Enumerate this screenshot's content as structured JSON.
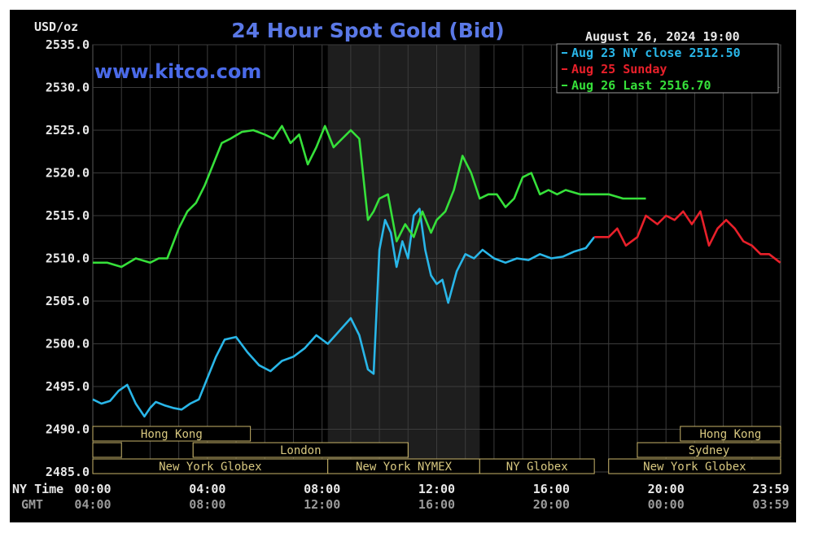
{
  "chart_data": {
    "type": "line",
    "title": "24 Hour Spot Gold (Bid)",
    "site": "www.kitco.com",
    "timestamp": "August 26, 2024 19:00",
    "y_unit": "USD/oz",
    "ylim": [
      2485.0,
      2535.0
    ],
    "yticks": [
      "2535.0",
      "2530.0",
      "2525.0",
      "2520.0",
      "2515.0",
      "2510.0",
      "2505.0",
      "2500.0",
      "2495.0",
      "2490.0",
      "2485.0"
    ],
    "x_row_label": "NY Time",
    "x_row2_label": "GMT",
    "xticks_ny": [
      "00:00",
      "04:00",
      "08:00",
      "12:00",
      "16:00",
      "20:00",
      "23:59"
    ],
    "xticks_gmt": [
      "04:00",
      "08:00",
      "12:00",
      "16:00",
      "20:00",
      "00:00",
      "03:59"
    ],
    "xlim_hours": [
      0,
      24
    ],
    "grid": true,
    "legend_position": "top-right",
    "legend": [
      {
        "label": "Aug 23 NY close 2512.50",
        "color": "#29b6e8"
      },
      {
        "label": "Aug 25 Sunday",
        "color": "#e8202a"
      },
      {
        "label": "Aug 26 Last 2516.70",
        "color": "#36e03a"
      }
    ],
    "series": [
      {
        "name": "Aug 23",
        "color": "#29b6e8",
        "x": [
          0,
          0.3,
          0.6,
          0.9,
          1.2,
          1.5,
          1.8,
          2.0,
          2.2,
          2.5,
          2.8,
          3.1,
          3.4,
          3.7,
          4.0,
          4.3,
          4.6,
          5.0,
          5.4,
          5.8,
          6.2,
          6.6,
          7.0,
          7.4,
          7.8,
          8.2,
          8.6,
          9.0,
          9.3,
          9.6,
          9.8,
          10.0,
          10.2,
          10.4,
          10.6,
          10.8,
          11.0,
          11.2,
          11.4,
          11.6,
          11.8,
          12.0,
          12.2,
          12.4,
          12.7,
          13.0,
          13.3,
          13.6,
          14.0,
          14.4,
          14.8,
          15.2,
          15.6,
          16.0,
          16.4,
          16.8,
          17.2,
          17.5
        ],
        "y": [
          2493.5,
          2493.0,
          2493.3,
          2494.5,
          2495.2,
          2493.0,
          2491.5,
          2492.5,
          2493.2,
          2492.8,
          2492.5,
          2492.3,
          2493.0,
          2493.5,
          2496.0,
          2498.5,
          2500.5,
          2500.8,
          2499.0,
          2497.5,
          2496.8,
          2498.0,
          2498.5,
          2499.5,
          2501.0,
          2500.0,
          2501.5,
          2503.0,
          2501.0,
          2497.0,
          2496.5,
          2511.0,
          2514.5,
          2513.0,
          2509.0,
          2512.0,
          2510.0,
          2515.0,
          2515.8,
          2511.0,
          2508.0,
          2507.0,
          2507.5,
          2504.8,
          2508.5,
          2510.5,
          2510.0,
          2511.0,
          2510.0,
          2509.5,
          2510.0,
          2509.8,
          2510.5,
          2510.0,
          2510.2,
          2510.8,
          2511.2,
          2512.5
        ]
      },
      {
        "name": "Aug 25",
        "color": "#e8202a",
        "x": [
          17.5,
          18.0,
          18.3,
          18.6,
          19.0,
          19.3,
          19.7,
          20.0,
          20.3,
          20.6,
          20.9,
          21.2,
          21.5,
          21.8,
          22.1,
          22.4,
          22.7,
          23.0,
          23.3,
          23.6,
          23.99
        ],
        "y": [
          2512.5,
          2512.5,
          2513.5,
          2511.5,
          2512.5,
          2515.0,
          2514.0,
          2515.0,
          2514.5,
          2515.5,
          2514.0,
          2515.5,
          2511.5,
          2513.5,
          2514.5,
          2513.5,
          2512.0,
          2511.5,
          2510.5,
          2510.5,
          2509.5
        ]
      },
      {
        "name": "Aug 26",
        "color": "#36e03a",
        "x": [
          0,
          0.5,
          1.0,
          1.5,
          2.0,
          2.3,
          2.6,
          3.0,
          3.3,
          3.6,
          3.9,
          4.2,
          4.5,
          4.8,
          5.2,
          5.6,
          6.0,
          6.3,
          6.6,
          6.9,
          7.2,
          7.5,
          7.8,
          8.1,
          8.4,
          8.7,
          9.0,
          9.3,
          9.6,
          9.8,
          10.0,
          10.3,
          10.6,
          10.9,
          11.2,
          11.5,
          11.8,
          12.0,
          12.3,
          12.6,
          12.9,
          13.2,
          13.5,
          13.8,
          14.1,
          14.4,
          14.7,
          15.0,
          15.3,
          15.6,
          15.9,
          16.2,
          16.5,
          17.0,
          17.5,
          18.0,
          18.5,
          19.0,
          19.3
        ],
        "y": [
          2509.5,
          2509.5,
          2509.0,
          2510.0,
          2509.5,
          2510.0,
          2510.0,
          2513.5,
          2515.5,
          2516.5,
          2518.5,
          2521.0,
          2523.5,
          2524.0,
          2524.8,
          2525.0,
          2524.5,
          2524.0,
          2525.5,
          2523.5,
          2524.5,
          2521.0,
          2523.0,
          2525.5,
          2523.0,
          2524.0,
          2525.0,
          2524.0,
          2514.5,
          2515.5,
          2517.0,
          2517.5,
          2512.0,
          2514.0,
          2512.5,
          2515.5,
          2513.0,
          2514.5,
          2515.5,
          2518.0,
          2522.0,
          2520.0,
          2517.0,
          2517.5,
          2517.5,
          2516.0,
          2517.0,
          2519.5,
          2520.0,
          2517.5,
          2518.0,
          2517.5,
          2518.0,
          2517.5,
          2517.5,
          2517.5,
          2517.0,
          2517.0,
          2517.0
        ]
      }
    ],
    "session_rows": [
      [
        {
          "label": "Hong Kong",
          "start": 0,
          "end": 5.5
        },
        {
          "label": "Hong Kong",
          "start": 20.5,
          "end": 24
        }
      ],
      [
        {
          "label": "",
          "start": 0,
          "end": 1
        },
        {
          "label": "",
          "start": 3.5,
          "end": 11
        },
        {
          "label": "London",
          "start": 3.5,
          "end": 11
        },
        {
          "label": "Sydney",
          "start": 19,
          "end": 24
        }
      ],
      [
        {
          "label": "New York Globex",
          "start": 0,
          "end": 8.2
        },
        {
          "label": "New York NYMEX",
          "start": 8.2,
          "end": 13.5
        },
        {
          "label": "NY Globex",
          "start": 13.5,
          "end": 17.5
        },
        {
          "label": "New York Globex",
          "start": 18,
          "end": 24
        }
      ]
    ],
    "nymex_shade": [
      8.2,
      13.5
    ]
  }
}
